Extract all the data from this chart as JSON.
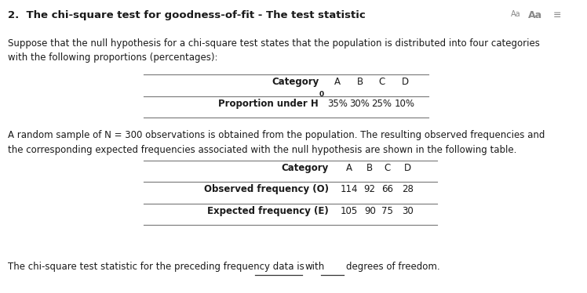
{
  "title": "2.  The chi-square test for goodness-of-fit - The test statistic",
  "para1_line1": "Suppose that the null hypothesis for a chi-square test states that the population is distributed into four categories",
  "para1_line2": "with the following proportions (percentages):",
  "table1_header": [
    "Category",
    "A",
    "B",
    "C",
    "D"
  ],
  "table1_row_label": "Proportion under H",
  "table1_row_values": [
    "35%",
    "30%",
    "25%",
    "10%"
  ],
  "para2_line1": "A random sample of N = 300 observations is obtained from the population. The resulting observed frequencies and",
  "para2_line2": "the corresponding expected frequencies associated with the null hypothesis are shown in the following table.",
  "table2_header": [
    "Category",
    "A",
    "B",
    "C",
    "D"
  ],
  "table2_row1_label": "Observed frequency (O)",
  "table2_row1_values": [
    "114",
    "92",
    "66",
    "28"
  ],
  "table2_row2_label": "Expected frequency (E)",
  "table2_row2_values": [
    "105",
    "90",
    "75",
    "30"
  ],
  "footer1": "The chi-square test statistic for the preceding frequency data is",
  "footer2": "with",
  "footer3": "degrees of freedom.",
  "bg_color": "#ffffff",
  "text_color": "#1a1a1a",
  "line_color": "#555555",
  "aa_color": "#888888"
}
